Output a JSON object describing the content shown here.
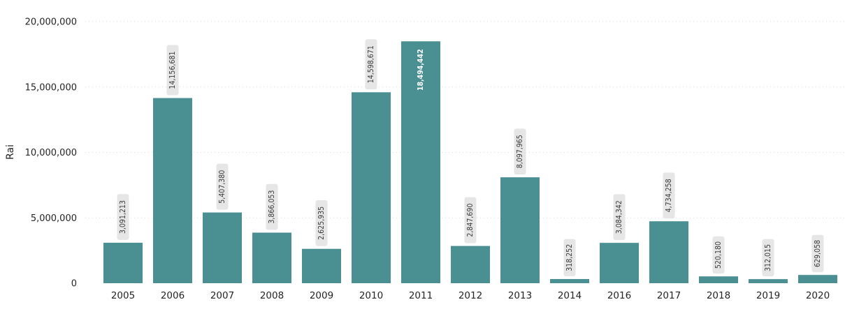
{
  "chart_data": {
    "type": "bar",
    "ylabel": "Rai",
    "xlabel": "",
    "ylim": [
      0,
      20000000
    ],
    "yticks": [
      0,
      5000000,
      10000000,
      15000000,
      20000000
    ],
    "ytick_labels": [
      "0",
      "5,000,000",
      "10,000,000",
      "15,000,000",
      "20,000,000"
    ],
    "grid": true,
    "bar_color": "#4a9093",
    "label_bg_color": "#e6e6e6",
    "categories": [
      "2005",
      "2006",
      "2007",
      "2008",
      "2009",
      "2010",
      "2011",
      "2012",
      "2013",
      "2014",
      "2016",
      "2017",
      "2018",
      "2019",
      "2020"
    ],
    "values": [
      3091213,
      14156681,
      5407380,
      3866053,
      2625935,
      14598671,
      18494442,
      2847690,
      8097965,
      318252,
      3084342,
      4734258,
      520180,
      312015,
      629058
    ],
    "value_labels": [
      "3,091,213",
      "14,156,681",
      "5,407,380",
      "3,866,053",
      "2,625,935",
      "14,598,671",
      "18,494,442",
      "2,847,690",
      "8,097,965",
      "318,252",
      "3,084,342",
      "4,734,258",
      "520,180",
      "312,015",
      "629,058"
    ]
  }
}
